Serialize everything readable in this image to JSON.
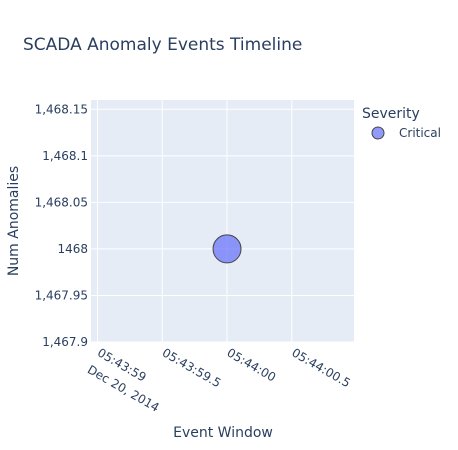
{
  "chart_data": {
    "type": "scatter",
    "title": "SCADA Anomaly Events Timeline",
    "xlabel": "Event Window",
    "ylabel": "Num Anomalies",
    "legend": {
      "title": "Severity",
      "placement": "top-right"
    },
    "x_tick_labels": [
      "05:43:59",
      "05:43:59.5",
      "05:44:00",
      "05:44:00.5"
    ],
    "x_tick_sublabel": "Dec 20, 2014",
    "y_ticks": [
      1467.9,
      1467.95,
      1468,
      1468.05,
      1468.1,
      1468.15
    ],
    "y_tick_labels": [
      "1,467.9",
      "1,467.95",
      "1468",
      "1,468.05",
      "1,468.1",
      "1,468.15"
    ],
    "ylim": [
      1467.9,
      1468.16
    ],
    "x_tick_values_seconds": [
      59,
      59.5,
      60,
      60.5
    ],
    "xlim_seconds": [
      58.95,
      60.98
    ],
    "series": [
      {
        "name": "Critical",
        "color": "#636efa",
        "points": [
          {
            "x": "2014-12-20 05:44:00",
            "x_seconds": 60,
            "y": 1468
          }
        ]
      }
    ],
    "grid": true
  }
}
